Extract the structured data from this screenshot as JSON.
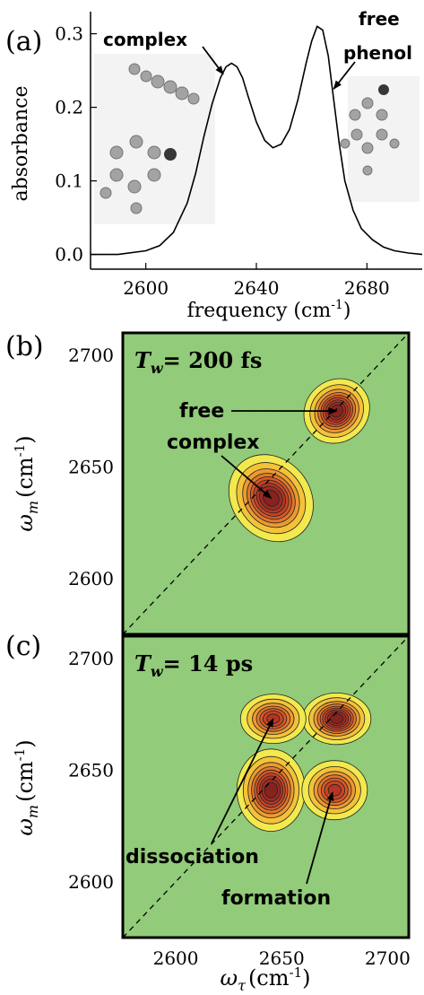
{
  "chart_data": [
    {
      "panel": "(a)",
      "type": "line",
      "xlabel": "frequency (cm",
      "xlabel_sup": "-1",
      "xlabel_close": ")",
      "ylabel": "absorbance",
      "xlim": [
        2580,
        2700
      ],
      "ylim": [
        -0.02,
        0.33
      ],
      "xticks": [
        2600,
        2640,
        2680
      ],
      "yticks": [
        0.0,
        0.1,
        0.2,
        0.3
      ],
      "ytick_labels": [
        "0.0",
        "0.1",
        "0.2",
        "0.3"
      ],
      "series": [
        {
          "x": [
            2580,
            2590,
            2600,
            2605,
            2610,
            2615,
            2618,
            2621,
            2624,
            2627,
            2629,
            2631,
            2633,
            2635,
            2637,
            2640,
            2643,
            2646,
            2649,
            2652,
            2655,
            2658,
            2660,
            2662,
            2664,
            2666,
            2668,
            2670,
            2672,
            2675,
            2678,
            2682,
            2686,
            2690,
            2695,
            2700
          ],
          "y": [
            0.0,
            0.0,
            0.005,
            0.012,
            0.03,
            0.07,
            0.11,
            0.16,
            0.205,
            0.24,
            0.255,
            0.26,
            0.255,
            0.24,
            0.215,
            0.18,
            0.155,
            0.145,
            0.15,
            0.17,
            0.21,
            0.26,
            0.29,
            0.31,
            0.305,
            0.27,
            0.21,
            0.15,
            0.1,
            0.06,
            0.035,
            0.02,
            0.01,
            0.005,
            0.002,
            0.0
          ]
        }
      ],
      "annotations": [
        {
          "text": "complex",
          "target_x": 2628,
          "target_y": 0.245
        },
        {
          "text_lines": [
            "free",
            "phenol"
          ],
          "target_x": 2668,
          "target_y": 0.225
        }
      ]
    },
    {
      "panel": "(b)",
      "type": "contour",
      "title_symbol": "T",
      "title_sub": "w",
      "title_value": "= 200 fs",
      "xlim": [
        2575,
        2710
      ],
      "ylim": [
        2575,
        2710
      ],
      "yticks": [
        2600,
        2650,
        2700
      ],
      "ylabel_symbol": "ω",
      "ylabel_sub": "m",
      "ylabel_unit": "(cm",
      "ylabel_sup": "-1",
      "ylabel_close": ")",
      "peaks": [
        {
          "x": 2676,
          "y": 2675,
          "sx": 7,
          "sy": 6,
          "amp": 1.0
        },
        {
          "x": 2645,
          "y": 2636,
          "sx": 8,
          "sy": 9,
          "amp": 1.0
        }
      ],
      "annotations": [
        {
          "text": "free",
          "target_x": 2676,
          "target_y": 2675
        },
        {
          "text": "complex",
          "target_x": 2645,
          "target_y": 2636
        }
      ]
    },
    {
      "panel": "(c)",
      "type": "contour",
      "title_symbol": "T",
      "title_sub": "w",
      "title_value": "= 14 ps",
      "xlim": [
        2575,
        2710
      ],
      "ylim": [
        2575,
        2710
      ],
      "xticks": [
        2600,
        2650,
        2700
      ],
      "yticks": [
        2600,
        2650,
        2700
      ],
      "xlabel_symbol": "ω",
      "xlabel_sub": "τ",
      "xlabel_unit": "(cm",
      "xlabel_sup": "-1",
      "xlabel_close": ")",
      "ylabel_symbol": "ω",
      "ylabel_sub": "m",
      "ylabel_unit": "(cm",
      "ylabel_sup": "-1",
      "ylabel_close": ")",
      "peaks": [
        {
          "x": 2676,
          "y": 2673,
          "sx": 7,
          "sy": 5,
          "amp": 1.0
        },
        {
          "x": 2645,
          "y": 2641,
          "sx": 7,
          "sy": 8,
          "amp": 1.0
        },
        {
          "x": 2646,
          "y": 2673,
          "sx": 7,
          "sy": 5,
          "amp": 0.8
        },
        {
          "x": 2675,
          "y": 2641,
          "sx": 7,
          "sy": 6,
          "amp": 0.8
        }
      ],
      "annotations": [
        {
          "text": "dissociation",
          "target_x": 2646,
          "target_y": 2673
        },
        {
          "text": "formation",
          "target_x": 2674,
          "target_y": 2640
        }
      ]
    }
  ]
}
